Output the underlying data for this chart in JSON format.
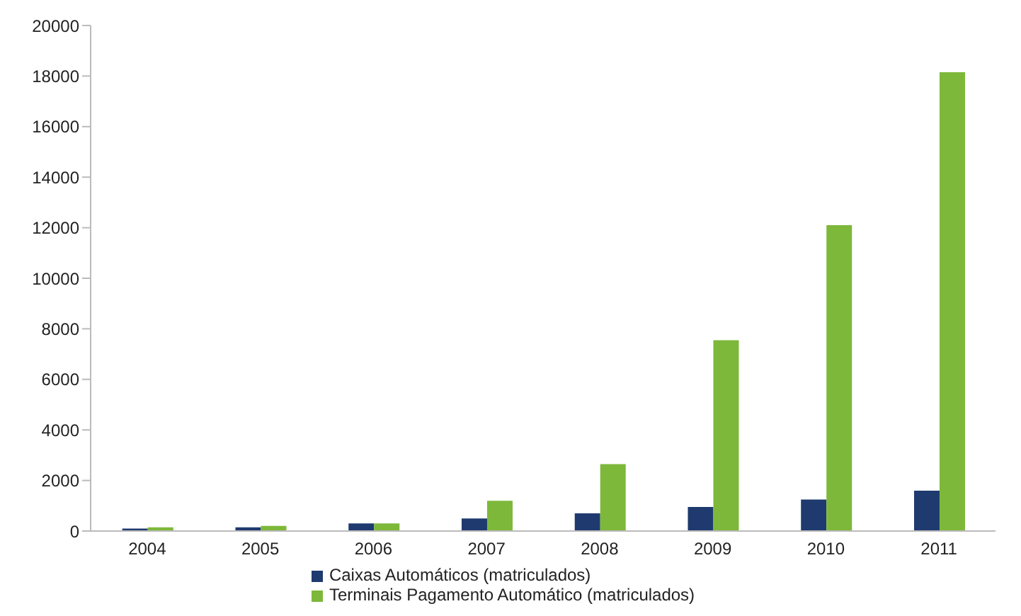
{
  "chart_data": {
    "type": "bar",
    "categories": [
      "2004",
      "2005",
      "2006",
      "2007",
      "2008",
      "2009",
      "2010",
      "2011"
    ],
    "series": [
      {
        "name": "Caixas Automáticos (matriculados)",
        "color": "#1f3a6e",
        "values": [
          100,
          150,
          300,
          500,
          700,
          950,
          1250,
          1600
        ]
      },
      {
        "name": "Terminais Pagamento  Automático (matriculados)",
        "color": "#7db83a",
        "values": [
          150,
          200,
          300,
          1200,
          2650,
          7550,
          12100,
          18150
        ]
      }
    ],
    "ylim": [
      0,
      20000
    ],
    "yticks": [
      0,
      2000,
      4000,
      6000,
      8000,
      10000,
      12000,
      14000,
      16000,
      18000,
      20000
    ],
    "grid": false,
    "legend": "bottom"
  }
}
